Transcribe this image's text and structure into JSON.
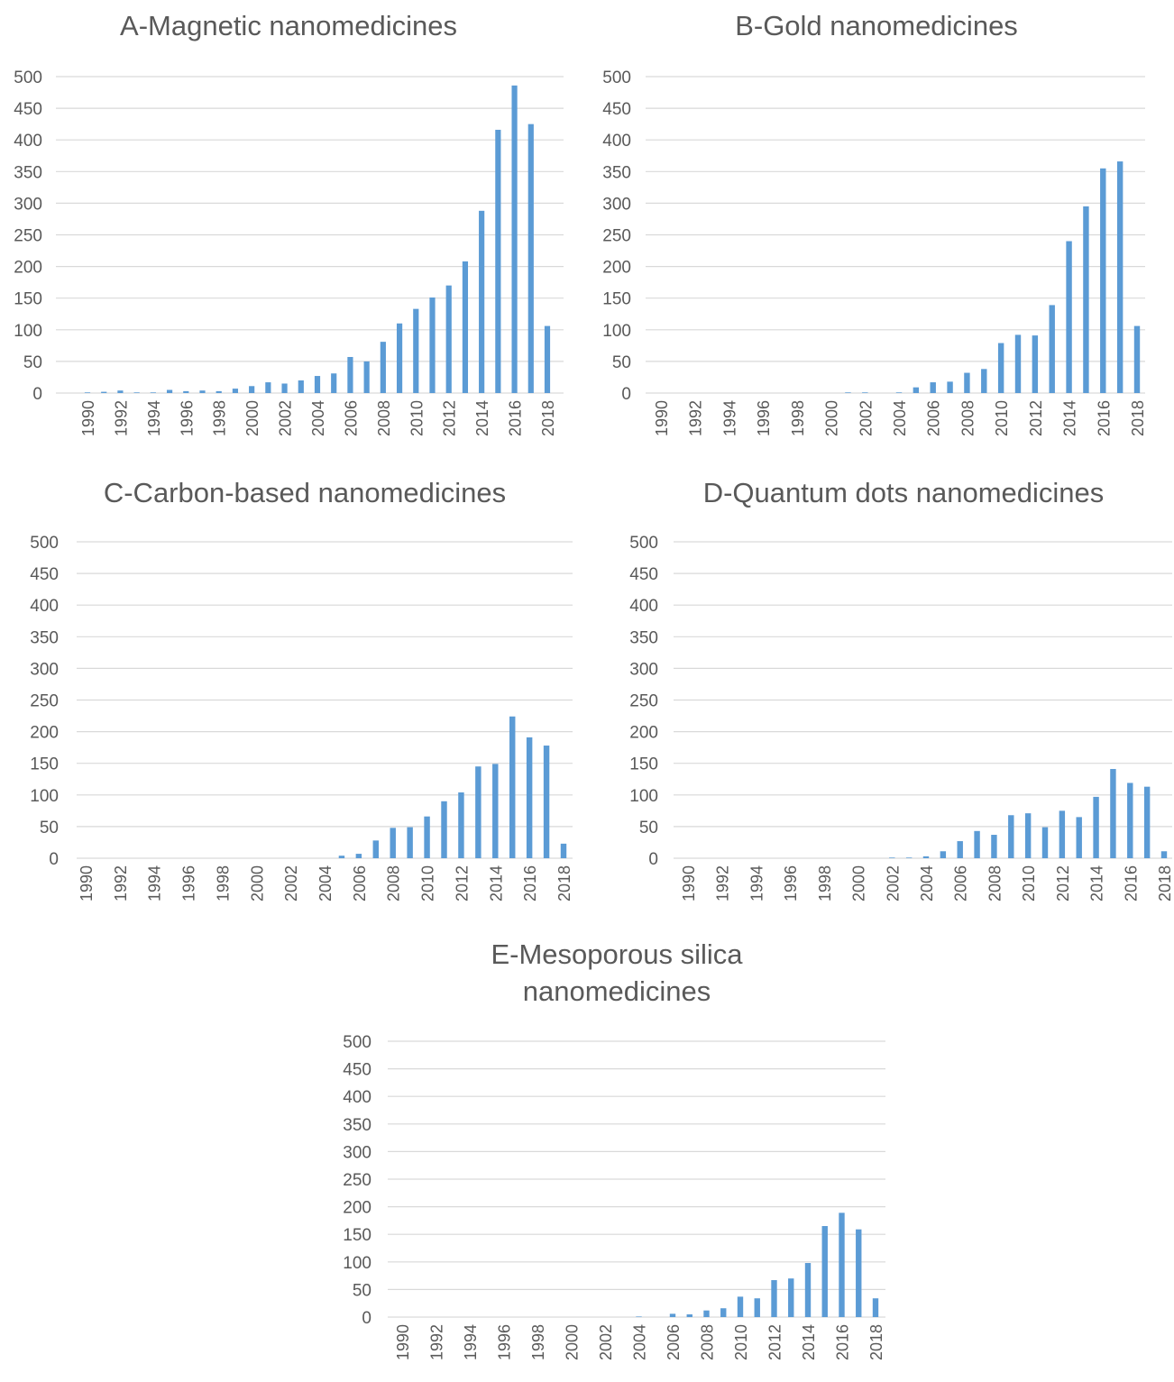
{
  "chart_data": [
    {
      "type": "bar",
      "title": "A-Magnetic nanomedicines",
      "xlabel": "",
      "ylabel": "",
      "ylim": [
        0,
        500
      ],
      "yticks": [
        0,
        50,
        100,
        150,
        200,
        250,
        300,
        350,
        400,
        450,
        500
      ],
      "grid": true,
      "legend": "none",
      "categories": [
        "1990",
        "1991",
        "1992",
        "1993",
        "1994",
        "1995",
        "1996",
        "1997",
        "1998",
        "1999",
        "2000",
        "2001",
        "2002",
        "2003",
        "2004",
        "2005",
        "2006",
        "2007",
        "2008",
        "2009",
        "2010",
        "2011",
        "2012",
        "2013",
        "2014",
        "2015",
        "2016",
        "2017",
        "2018"
      ],
      "x_tick_labels": [
        "1990",
        "1992",
        "1994",
        "1996",
        "1998",
        "2000",
        "2002",
        "2004",
        "2006",
        "2008",
        "2010",
        "2012",
        "2014",
        "2016",
        "2018"
      ],
      "values": [
        1,
        2,
        4,
        1,
        1,
        5,
        3,
        4,
        3,
        7,
        11,
        17,
        15,
        20,
        27,
        31,
        57,
        50,
        81,
        110,
        133,
        151,
        170,
        208,
        288,
        416,
        486,
        425,
        106
      ]
    },
    {
      "type": "bar",
      "title": "B-Gold nanomedicines",
      "xlabel": "",
      "ylabel": "",
      "ylim": [
        0,
        500
      ],
      "yticks": [
        0,
        50,
        100,
        150,
        200,
        250,
        300,
        350,
        400,
        450,
        500
      ],
      "grid": true,
      "legend": "none",
      "categories": [
        "1990",
        "1991",
        "1992",
        "1993",
        "1994",
        "1995",
        "1996",
        "1997",
        "1998",
        "1999",
        "2000",
        "2001",
        "2002",
        "2003",
        "2004",
        "2005",
        "2006",
        "2007",
        "2008",
        "2009",
        "2010",
        "2011",
        "2012",
        "2013",
        "2014",
        "2015",
        "2016",
        "2017",
        "2018"
      ],
      "x_tick_labels": [
        "1990",
        "1992",
        "1994",
        "1996",
        "1998",
        "2000",
        "2002",
        "2004",
        "2006",
        "2008",
        "2010",
        "2012",
        "2014",
        "2016",
        "2018"
      ],
      "values": [
        0,
        0,
        0,
        0,
        0,
        0,
        0,
        0,
        0,
        0,
        0,
        1,
        1,
        0,
        1,
        9,
        17,
        18,
        32,
        38,
        79,
        92,
        91,
        139,
        240,
        295,
        355,
        366,
        106
      ]
    },
    {
      "type": "bar",
      "title": "C-Carbon-based nanomedicines",
      "xlabel": "",
      "ylabel": "",
      "ylim": [
        0,
        500
      ],
      "yticks": [
        0,
        50,
        100,
        150,
        200,
        250,
        300,
        350,
        400,
        450,
        500
      ],
      "grid": true,
      "legend": "none",
      "categories": [
        "1990",
        "1991",
        "1992",
        "1993",
        "1994",
        "1995",
        "1996",
        "1997",
        "1998",
        "1999",
        "2000",
        "2001",
        "2002",
        "2003",
        "2004",
        "2005",
        "2006",
        "2007",
        "2008",
        "2009",
        "2010",
        "2011",
        "2012",
        "2013",
        "2014",
        "2015",
        "2016",
        "2017",
        "2018"
      ],
      "x_tick_labels": [
        "1990",
        "1992",
        "1994",
        "1996",
        "1998",
        "2000",
        "2002",
        "2004",
        "2006",
        "2008",
        "2010",
        "2012",
        "2014",
        "2016",
        "2018"
      ],
      "values": [
        0,
        0,
        0,
        0,
        0,
        0,
        0,
        0,
        0,
        0,
        0,
        0,
        0,
        0,
        0,
        4,
        7,
        28,
        48,
        49,
        66,
        90,
        104,
        145,
        149,
        224,
        191,
        178,
        23
      ]
    },
    {
      "type": "bar",
      "title": "D-Quantum dots nanomedicines",
      "xlabel": "",
      "ylabel": "",
      "ylim": [
        0,
        500
      ],
      "yticks": [
        0,
        50,
        100,
        150,
        200,
        250,
        300,
        350,
        400,
        450,
        500
      ],
      "grid": true,
      "legend": "none",
      "categories": [
        "1990",
        "1991",
        "1992",
        "1993",
        "1994",
        "1995",
        "1996",
        "1997",
        "1998",
        "1999",
        "2000",
        "2001",
        "2002",
        "2003",
        "2004",
        "2005",
        "2006",
        "2007",
        "2008",
        "2009",
        "2010",
        "2011",
        "2012",
        "2013",
        "2014",
        "2015",
        "2016",
        "2017",
        "2018"
      ],
      "x_tick_labels": [
        "1990",
        "1992",
        "1994",
        "1996",
        "1998",
        "2000",
        "2002",
        "2004",
        "2006",
        "2008",
        "2010",
        "2012",
        "2014",
        "2016",
        "2018"
      ],
      "values": [
        0,
        0,
        0,
        0,
        0,
        0,
        0,
        0,
        0,
        0,
        0,
        0,
        1,
        1,
        3,
        11,
        27,
        43,
        37,
        68,
        71,
        49,
        75,
        65,
        97,
        141,
        119,
        113,
        11
      ]
    },
    {
      "type": "bar",
      "title": "E-Mesoporous silica nanomedicines",
      "xlabel": "",
      "ylabel": "",
      "ylim": [
        0,
        500
      ],
      "yticks": [
        0,
        50,
        100,
        150,
        200,
        250,
        300,
        350,
        400,
        450,
        500
      ],
      "grid": true,
      "legend": "none",
      "categories": [
        "1990",
        "1991",
        "1992",
        "1993",
        "1994",
        "1995",
        "1996",
        "1997",
        "1998",
        "1999",
        "2000",
        "2001",
        "2002",
        "2003",
        "2004",
        "2005",
        "2006",
        "2007",
        "2008",
        "2009",
        "2010",
        "2011",
        "2012",
        "2013",
        "2014",
        "2015",
        "2016",
        "2017",
        "2018"
      ],
      "x_tick_labels": [
        "1990",
        "1992",
        "1994",
        "1996",
        "1998",
        "2000",
        "2002",
        "2004",
        "2006",
        "2008",
        "2010",
        "2012",
        "2014",
        "2016",
        "2018"
      ],
      "values": [
        0,
        0,
        0,
        0,
        0,
        0,
        0,
        0,
        0,
        0,
        0,
        0,
        0,
        0,
        1,
        0,
        6,
        5,
        12,
        16,
        37,
        34,
        67,
        70,
        98,
        165,
        189,
        159,
        34
      ]
    }
  ],
  "colors": {
    "bar": "#5b9bd5",
    "grid": "#d9d9d9",
    "text": "#595959",
    "title": "#595959"
  }
}
